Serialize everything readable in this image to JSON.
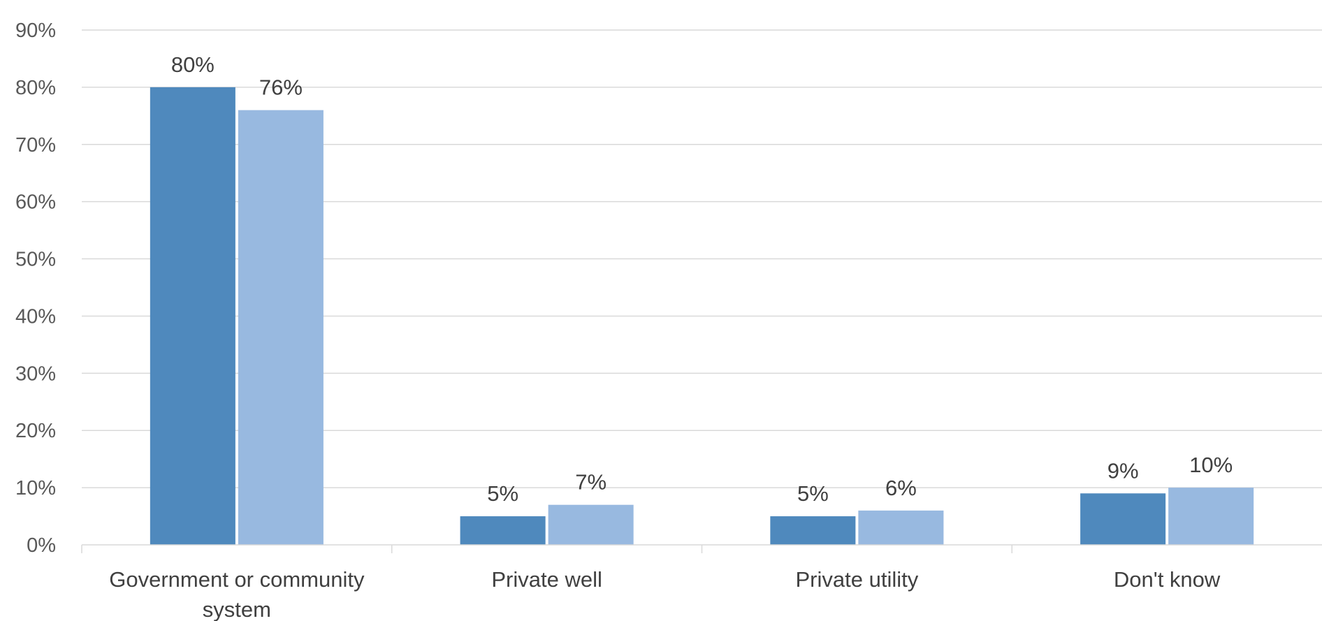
{
  "chart_data": {
    "type": "bar",
    "title": "",
    "xlabel": "",
    "ylabel": "",
    "ylim": [
      0,
      90
    ],
    "y_ticks": [
      "0%",
      "10%",
      "20%",
      "30%",
      "40%",
      "50%",
      "60%",
      "70%",
      "80%",
      "90%"
    ],
    "y_tick_values": [
      0,
      10,
      20,
      30,
      40,
      50,
      60,
      70,
      80,
      90
    ],
    "grid": true,
    "legend": "none",
    "categories": [
      [
        "Government or community",
        "system"
      ],
      [
        "Private well"
      ],
      [
        "Private utility"
      ],
      [
        "Don't know"
      ]
    ],
    "series": [
      {
        "values": [
          80,
          5,
          5,
          9
        ],
        "labels": [
          "80%",
          "5%",
          "5%",
          "9%"
        ],
        "color": "#4f89bd"
      },
      {
        "values": [
          76,
          7,
          6,
          10
        ],
        "labels": [
          "76%",
          "7%",
          "6%",
          "10%"
        ],
        "color": "#98b9e0"
      }
    ]
  }
}
